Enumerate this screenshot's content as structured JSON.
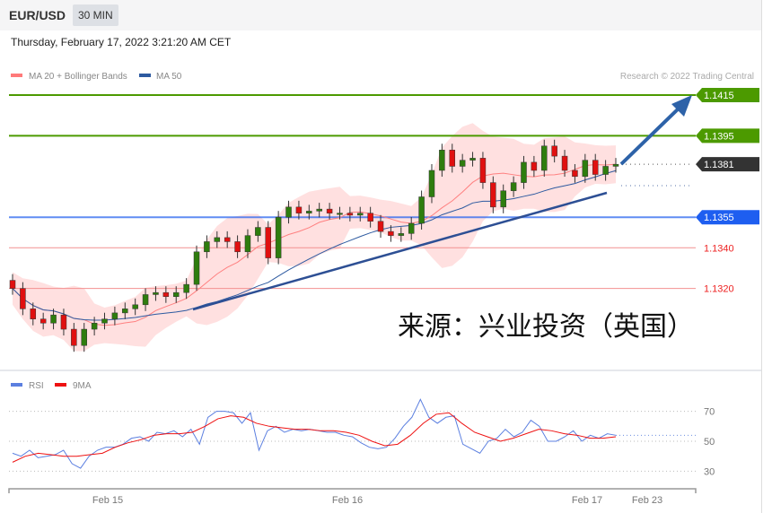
{
  "header": {
    "symbol": "EUR/USD",
    "timeframe": "30 MIN"
  },
  "timestamp": "Thursday, February 17, 2022 3:21:20 AM CET",
  "legend": {
    "ma20": "MA 20 + Bollinger Bands",
    "ma50": "MA 50",
    "rsi": "RSI",
    "rsi_ma": "9MA"
  },
  "credit": "Research © 2022 Trading Central",
  "watermark": "来源：兴业投资（英国）",
  "colors": {
    "up": "#2e7d0e",
    "down": "#e01010",
    "target": "#4c9a00",
    "current": "#333333",
    "support": "#1e5ef0",
    "level": "#ee2222",
    "ma50": "#2d5aa0",
    "band": "#ffd6d6",
    "rsi": "#5b7fe0",
    "rsi_ma": "#ee1111"
  },
  "chart_data": {
    "type": "candlestick",
    "ylim": [
      1.128,
      1.1425
    ],
    "levels": [
      {
        "value": 1.1415,
        "label": "1.1415",
        "kind": "target"
      },
      {
        "value": 1.1395,
        "label": "1.1395",
        "kind": "target"
      },
      {
        "value": 1.1381,
        "label": "1.1381",
        "kind": "current"
      },
      {
        "value": 1.1355,
        "label": "1.1355",
        "kind": "support"
      },
      {
        "value": 1.134,
        "label": "1.1340",
        "kind": "level"
      },
      {
        "value": 1.132,
        "label": "1.1320",
        "kind": "level"
      }
    ],
    "closes": [
      1.132,
      1.131,
      1.1305,
      1.1303,
      1.1307,
      1.13,
      1.1292,
      1.13,
      1.1303,
      1.1305,
      1.1308,
      1.131,
      1.1312,
      1.1317,
      1.1318,
      1.1316,
      1.1318,
      1.1322,
      1.1338,
      1.1343,
      1.1345,
      1.1343,
      1.1338,
      1.1346,
      1.135,
      1.1335,
      1.1355,
      1.136,
      1.1357,
      1.1358,
      1.1359,
      1.1357,
      1.1357,
      1.1356,
      1.1357,
      1.1353,
      1.1348,
      1.1346,
      1.1347,
      1.1352,
      1.1365,
      1.1378,
      1.1388,
      1.138,
      1.1383,
      1.1384,
      1.1372,
      1.136,
      1.1368,
      1.1372,
      1.1382,
      1.1378,
      1.139,
      1.1385,
      1.1378,
      1.1375,
      1.1383,
      1.1376,
      1.138,
      1.1381
    ],
    "x_ticks": [
      "Feb 15",
      "Feb 16",
      "Feb 17",
      "Feb 23"
    ],
    "rsi": {
      "ticks": [
        "70",
        "50",
        "30"
      ],
      "ylim": [
        20,
        85
      ],
      "values": [
        42,
        40,
        44,
        39,
        40,
        41,
        44,
        35,
        32,
        40,
        44,
        46,
        46,
        48,
        52,
        53,
        50,
        56,
        55,
        57,
        53,
        58,
        48,
        66,
        70,
        70,
        69,
        62,
        69,
        44,
        57,
        60,
        56,
        58,
        57,
        58,
        57,
        56,
        56,
        54,
        53,
        49,
        46,
        45,
        46,
        52,
        60,
        66,
        78,
        66,
        62,
        66,
        67,
        48,
        45,
        42,
        50,
        52,
        58,
        53,
        56,
        64,
        60,
        50,
        50,
        53,
        57,
        50,
        54,
        52,
        55,
        54
      ],
      "ma9": [
        36,
        40,
        42,
        41,
        40,
        40,
        41,
        42,
        46,
        49,
        51,
        54,
        55,
        55,
        56,
        60,
        65,
        67,
        66,
        62,
        60,
        59,
        58,
        58,
        57,
        57,
        56,
        54,
        50,
        47,
        48,
        54,
        62,
        68,
        69,
        62,
        56,
        53,
        50,
        52,
        55,
        58,
        57,
        55,
        54,
        52,
        52,
        53
      ]
    }
  }
}
